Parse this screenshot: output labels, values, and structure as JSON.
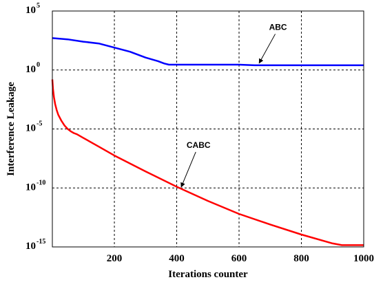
{
  "chart_data": {
    "type": "line",
    "xlabel": "Iterations counter",
    "ylabel": "Interference Leakage",
    "xlim": [
      1,
      1000
    ],
    "ylim_log10": [
      -15,
      5
    ],
    "yscale": "log",
    "grid": true,
    "x_ticks": [
      200,
      400,
      600,
      800,
      1000
    ],
    "y_ticks": [
      {
        "base": "10",
        "exp": "5",
        "log10": 5
      },
      {
        "base": "10",
        "exp": "0",
        "log10": 0
      },
      {
        "base": "10",
        "exp": "-5",
        "log10": -5
      },
      {
        "base": "10",
        "exp": "-10",
        "log10": -10
      },
      {
        "base": "10",
        "exp": "-15",
        "log10": -15
      }
    ],
    "series": [
      {
        "name": "ABC",
        "color": "#0000ff",
        "points": [
          [
            1,
            2.7
          ],
          [
            50,
            2.6
          ],
          [
            100,
            2.4
          ],
          [
            150,
            2.25
          ],
          [
            200,
            1.9
          ],
          [
            250,
            1.55
          ],
          [
            300,
            1.05
          ],
          [
            340,
            0.75
          ],
          [
            360,
            0.55
          ],
          [
            375,
            0.45
          ],
          [
            420,
            0.45
          ],
          [
            600,
            0.45
          ],
          [
            650,
            0.4
          ],
          [
            800,
            0.4
          ],
          [
            1000,
            0.4
          ]
        ]
      },
      {
        "name": "CABC",
        "color": "#ff0000",
        "points": [
          [
            1,
            -0.8
          ],
          [
            3,
            -1.6
          ],
          [
            6,
            -2.3
          ],
          [
            10,
            -2.9
          ],
          [
            15,
            -3.4
          ],
          [
            20,
            -3.8
          ],
          [
            30,
            -4.3
          ],
          [
            40,
            -4.7
          ],
          [
            50,
            -5.0
          ],
          [
            60,
            -5.2
          ],
          [
            70,
            -5.35
          ],
          [
            80,
            -5.45
          ],
          [
            100,
            -5.75
          ],
          [
            150,
            -6.5
          ],
          [
            200,
            -7.25
          ],
          [
            300,
            -8.6
          ],
          [
            400,
            -9.9
          ],
          [
            500,
            -11.1
          ],
          [
            600,
            -12.2
          ],
          [
            700,
            -13.1
          ],
          [
            800,
            -13.95
          ],
          [
            900,
            -14.7
          ],
          [
            930,
            -14.85
          ],
          [
            1000,
            -14.85
          ]
        ]
      }
    ],
    "annotations": [
      {
        "text": "ABC",
        "x": 660,
        "log10": 0.4,
        "label_x": 725,
        "label_log10": 3.4
      },
      {
        "text": "CABC",
        "x": 410,
        "log10": -10.1,
        "label_x": 470,
        "label_log10": -6.6
      }
    ]
  }
}
